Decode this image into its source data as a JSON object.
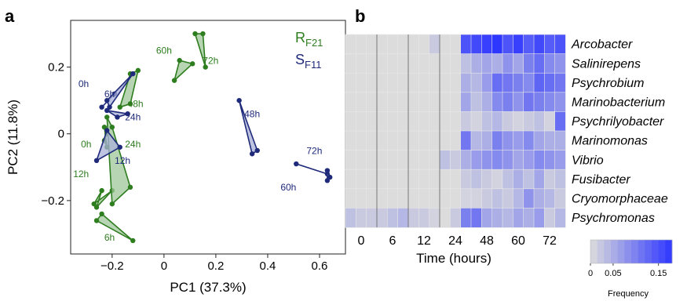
{
  "panel_labels": {
    "a": "a",
    "b": "b"
  },
  "colors": {
    "green": "#2e7d1f",
    "blue": "#1f2a7a",
    "green_fill": "#9fc79a",
    "blue_fill": "#aab0d8",
    "heat_low": "#dcdcdc",
    "heat_high": "#2e37ff",
    "grid": "#777777"
  },
  "chart_data": [
    {
      "type": "scatter",
      "panel": "a",
      "xlabel": "PC1 (37.3%)",
      "ylabel": "PC2 (11.8%)",
      "xlim": [
        -0.36,
        0.7
      ],
      "ylim": [
        -0.36,
        0.34
      ],
      "xticks": [
        -0.2,
        0.0,
        0.2,
        0.4,
        0.6
      ],
      "xtick_labels": [
        "−0.2",
        "0",
        "0.2",
        "0.4",
        "0.6"
      ],
      "yticks": [
        -0.2,
        0.0,
        0.2
      ],
      "ytick_labels": [
        "−0.2",
        "0",
        "0.2"
      ],
      "legend": [
        {
          "main": "R",
          "sub": "F21",
          "color": "green"
        },
        {
          "main": "S",
          "sub": "F11",
          "color": "blue"
        }
      ],
      "series": [
        {
          "name": "RF21",
          "color": "green",
          "groups": [
            {
              "time": "0h",
              "label_at": [
                -0.3,
                -0.04
              ],
              "points": [
                [
                  -0.23,
                  -0.02
                ],
                [
                  -0.22,
                  -0.04
                ],
                [
                  -0.23,
                  0.02
                ],
                [
                  -0.22,
                  0.0
                ]
              ]
            },
            {
              "time": "12h",
              "label_at": [
                -0.32,
                -0.13
              ],
              "points": [
                [
                  -0.27,
                  -0.21
                ],
                [
                  -0.24,
                  -0.17
                ],
                [
                  -0.26,
                  -0.22
                ],
                [
                  -0.2,
                  -0.17
                ]
              ]
            },
            {
              "time": "24h",
              "label_at": [
                -0.12,
                -0.04
              ],
              "points": [
                [
                  -0.22,
                  0.05
                ],
                [
                  -0.2,
                  -0.21
                ],
                [
                  -0.13,
                  -0.16
                ],
                [
                  -0.2,
                  0.02
                ]
              ]
            },
            {
              "time": "48h",
              "label_at": [
                -0.11,
                0.08
              ],
              "points": [
                [
                  -0.13,
                  0.09
                ],
                [
                  -0.1,
                  0.19
                ],
                [
                  -0.13,
                  0.18
                ],
                [
                  -0.17,
                  0.08
                ]
              ]
            },
            {
              "time": "60h",
              "label_at": [
                0.0,
                0.24
              ],
              "points": [
                [
                  0.04,
                  0.16
                ],
                [
                  0.06,
                  0.22
                ],
                [
                  0.11,
                  0.21
                ]
              ]
            },
            {
              "time": "72h",
              "label_at": [
                0.18,
                0.21
              ],
              "points": [
                [
                  0.15,
                  0.3
                ],
                [
                  0.12,
                  0.3
                ],
                [
                  0.16,
                  0.2
                ]
              ]
            },
            {
              "time": "6h",
              "label_at": [
                -0.21,
                -0.32
              ],
              "points": [
                [
                  -0.26,
                  -0.26
                ],
                [
                  -0.24,
                  -0.24
                ],
                [
                  -0.12,
                  -0.32
                ]
              ]
            }
          ]
        },
        {
          "name": "SF11",
          "color": "blue",
          "groups": [
            {
              "time": "0h",
              "label_at": [
                -0.31,
                0.14
              ],
              "points": [
                [
                  -0.19,
                  0.12
                ],
                [
                  -0.24,
                  0.08
                ]
              ]
            },
            {
              "time": "6h",
              "label_at": [
                -0.21,
                0.11
              ],
              "points": [
                [
                  -0.22,
                  0.1
                ],
                [
                  -0.21,
                  0.08
                ],
                [
                  -0.12,
                  0.18
                ]
              ]
            },
            {
              "time": "24h",
              "label_at": [
                -0.12,
                0.04
              ],
              "points": [
                [
                  -0.22,
                  0.07
                ],
                [
                  -0.14,
                  0.06
                ],
                [
                  -0.18,
                  0.05
                ]
              ]
            },
            {
              "time": "12h",
              "label_at": [
                -0.16,
                -0.09
              ],
              "points": [
                [
                  -0.22,
                  0.01
                ],
                [
                  -0.26,
                  -0.08
                ],
                [
                  -0.17,
                  -0.04
                ]
              ]
            },
            {
              "time": "48h",
              "label_at": [
                0.34,
                0.05
              ],
              "points": [
                [
                  0.29,
                  0.1
                ],
                [
                  0.34,
                  -0.06
                ],
                [
                  0.36,
                  -0.05
                ]
              ]
            },
            {
              "time": "60h",
              "label_at": [
                0.48,
                -0.17
              ],
              "points": [
                [
                  0.51,
                  -0.09
                ],
                [
                  0.63,
                  -0.12
                ]
              ]
            },
            {
              "time": "72h",
              "label_at": [
                0.58,
                -0.06
              ],
              "points": [
                [
                  0.63,
                  -0.11
                ],
                [
                  0.64,
                  -0.13
                ],
                [
                  0.63,
                  -0.14
                ]
              ]
            }
          ]
        }
      ]
    },
    {
      "type": "heatmap",
      "panel": "b",
      "xlabel": "Time (hours)",
      "xtick_labels": [
        "0",
        "6",
        "12",
        "24",
        "48",
        "60",
        "72"
      ],
      "rows": [
        "Arcobacter",
        "Salinirepens",
        "Psychrobium",
        "Marinobacterium",
        "Psychrilyobacter",
        "Marinomonas",
        "Vibrio",
        "Fusibacter",
        "Cryomorphaceae",
        "Psychromonas"
      ],
      "columns_per_time": 3,
      "separators_after_column": [
        3,
        6,
        9
      ],
      "colorbar": {
        "range": [
          0,
          0.18
        ],
        "tick_values": [
          0,
          0.05,
          0.15
        ],
        "ticks": [
          "0",
          "0.05",
          "0.15"
        ],
        "label": "Frequency"
      },
      "values": [
        [
          0,
          0,
          0,
          0,
          0,
          0,
          0,
          0,
          0.02,
          0,
          0,
          0.15,
          0.16,
          0.17,
          0.18,
          0.15,
          0.17,
          0.14,
          0.16,
          0.14,
          0.15
        ],
        [
          0,
          0,
          0,
          0,
          0,
          0,
          0,
          0,
          0,
          0,
          0,
          0.03,
          0.05,
          0.06,
          0.05,
          0.08,
          0.06,
          0.1,
          0.12,
          0.09,
          0.08
        ],
        [
          0,
          0,
          0,
          0,
          0,
          0,
          0,
          0,
          0,
          0,
          0,
          0.05,
          0.04,
          0.07,
          0.12,
          0.11,
          0.1,
          0.09,
          0.13,
          0.12,
          0.11
        ],
        [
          0,
          0,
          0,
          0,
          0,
          0,
          0,
          0,
          0,
          0,
          0,
          0.06,
          0.03,
          0.05,
          0.09,
          0.1,
          0.08,
          0.11,
          0.1,
          0.09,
          0.08
        ],
        [
          0,
          0,
          0,
          0,
          0,
          0,
          0,
          0,
          0,
          0,
          0,
          0.02,
          0.01,
          0.03,
          0.04,
          0.02,
          0.01,
          0.02,
          0.03,
          0.01,
          0.12
        ],
        [
          0,
          0,
          0,
          0,
          0,
          0,
          0,
          0,
          0,
          0,
          0,
          0.11,
          0.04,
          0.05,
          0.1,
          0.08,
          0.07,
          0.09,
          0.06,
          0.05,
          0.05
        ],
        [
          0,
          0,
          0,
          0,
          0,
          0,
          0,
          0,
          0,
          0.03,
          0.02,
          0.05,
          0.07,
          0.08,
          0.09,
          0.08,
          0.06,
          0.07,
          0.09,
          0.08,
          0.07
        ],
        [
          0,
          0,
          0,
          0,
          0,
          0,
          0,
          0,
          0,
          0,
          0,
          0.02,
          0.03,
          0.02,
          0.01,
          0.03,
          0.05,
          0.03,
          0.06,
          0.02,
          0.03
        ],
        [
          0,
          0,
          0,
          0,
          0,
          0,
          0,
          0,
          0,
          0,
          0,
          0.01,
          0.01,
          0.02,
          0.03,
          0.02,
          0.04,
          0.08,
          0.05,
          0.04,
          0.02
        ],
        [
          0.03,
          0.02,
          0.02,
          0.02,
          0.03,
          0.04,
          0.02,
          0.02,
          0.01,
          0.0,
          0.02,
          0.1,
          0.11,
          0.06,
          0.05,
          0.04,
          0.06,
          0.05,
          0.07,
          0.02,
          0.04
        ]
      ]
    }
  ]
}
